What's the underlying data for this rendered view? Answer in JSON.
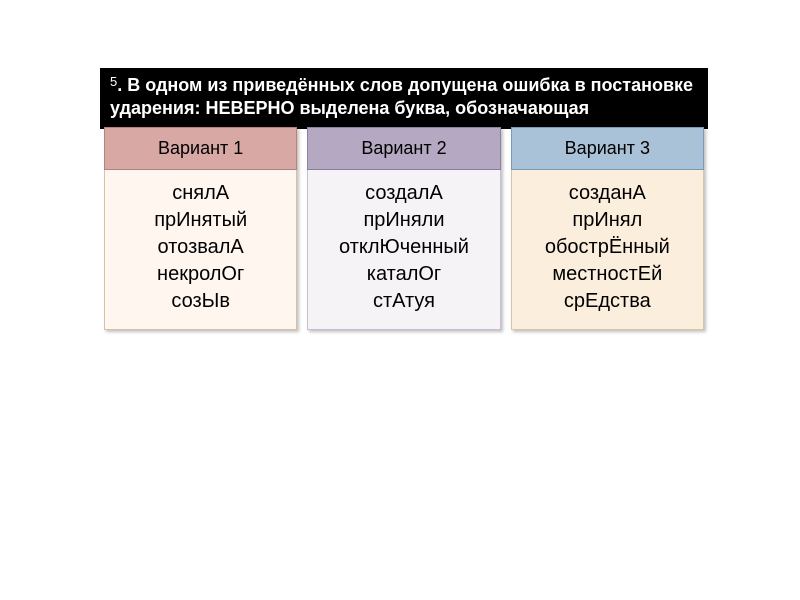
{
  "question": {
    "number": "5",
    "line1": ". В одном из приведённых слов допущена ошибка в постановке",
    "line2": "ударения: НЕВЕРНО выделена буква, обозначающая"
  },
  "variants": [
    {
      "title": "Вариант 1",
      "words": [
        "снялА",
        "прИнятый",
        "отозвалА",
        "некролОг",
        "созЫв"
      ],
      "header_bg": "#d8a8a5",
      "header_border": "#b88080",
      "body_bg": "#fef6ef",
      "body_border": "#d8bfa8"
    },
    {
      "title": "Вариант 2",
      "words": [
        "создалА",
        "прИняли",
        "отклЮченный",
        "каталОг",
        "стАтуя"
      ],
      "header_bg": "#b5a8c3",
      "header_border": "#8e7fa3",
      "body_bg": "#f6f3f7",
      "body_border": "#c8bdd4"
    },
    {
      "title": "Вариант 3",
      "words": [
        "созданА",
        "прИнял",
        "обострЁнный",
        "местностЕй",
        "срЕдства"
      ],
      "header_bg": "#a9c2d8",
      "header_border": "#7a9bb8",
      "body_bg": "#fbeedd",
      "body_border": "#d8c5a8"
    }
  ],
  "typography": {
    "question_fontsize": 18,
    "header_fontsize": 18,
    "body_fontsize": 20
  },
  "colors": {
    "question_bg": "#000000",
    "question_text": "#ffffff",
    "page_bg": "#ffffff"
  }
}
